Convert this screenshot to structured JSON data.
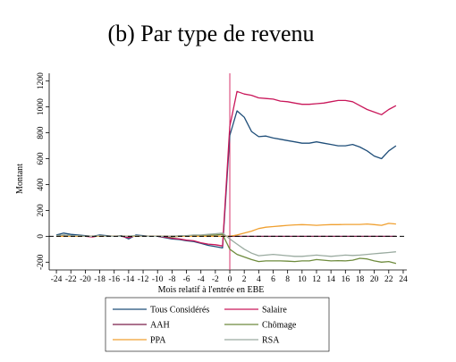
{
  "chart_data": {
    "type": "line",
    "title": "(b) Par type de revenu",
    "xlabel": "Mois relatif à l'entrée en EBE",
    "ylabel": "Montant",
    "xlim": [
      -25,
      24.5
    ],
    "ylim": [
      -260,
      1260
    ],
    "x_ticks": [
      -24,
      -22,
      -20,
      -18,
      -16,
      -14,
      -12,
      -10,
      -8,
      -6,
      -4,
      -2,
      0,
      2,
      4,
      6,
      8,
      10,
      12,
      14,
      16,
      18,
      20,
      22,
      24
    ],
    "y_ticks": [
      -200,
      0,
      200,
      400,
      600,
      800,
      1000,
      1200
    ],
    "vertical_line_x": 0,
    "zero_line": "dashed",
    "grid": false,
    "legend_position": "bottom",
    "x": [
      -24,
      -23,
      -22,
      -21,
      -20,
      -19,
      -18,
      -17,
      -16,
      -15,
      -14,
      -13,
      -12,
      -11,
      -10,
      -9,
      -8,
      -7,
      -6,
      -5,
      -4,
      -3,
      -2,
      -1,
      0,
      1,
      2,
      3,
      4,
      5,
      6,
      7,
      8,
      9,
      10,
      11,
      12,
      13,
      14,
      15,
      16,
      17,
      18,
      19,
      20,
      21,
      22,
      23
    ],
    "series": [
      {
        "name": "Tous Considérés",
        "color": "#1f4e79",
        "values": [
          10,
          25,
          15,
          10,
          5,
          0,
          10,
          5,
          0,
          5,
          -20,
          10,
          5,
          0,
          0,
          -10,
          -20,
          -25,
          -35,
          -40,
          -55,
          -70,
          -80,
          -90,
          780,
          970,
          920,
          810,
          770,
          775,
          760,
          750,
          740,
          730,
          720,
          720,
          730,
          720,
          710,
          700,
          700,
          710,
          690,
          660,
          620,
          600,
          660,
          700
        ]
      },
      {
        "name": "Salaire",
        "color": "#c9175a",
        "values": [
          0,
          5,
          5,
          0,
          0,
          -5,
          5,
          0,
          0,
          0,
          -10,
          5,
          0,
          0,
          0,
          -5,
          -15,
          -20,
          -30,
          -35,
          -50,
          -60,
          -65,
          -75,
          850,
          1120,
          1100,
          1090,
          1070,
          1065,
          1060,
          1045,
          1040,
          1030,
          1020,
          1020,
          1025,
          1030,
          1040,
          1050,
          1050,
          1040,
          1010,
          980,
          960,
          940,
          980,
          1010
        ]
      },
      {
        "name": "AAH",
        "color": "#7a1f4a",
        "values": [
          0,
          5,
          0,
          0,
          0,
          0,
          0,
          0,
          0,
          0,
          0,
          0,
          0,
          0,
          0,
          0,
          0,
          0,
          0,
          0,
          0,
          0,
          0,
          0,
          0,
          0,
          0,
          0,
          0,
          0,
          0,
          0,
          0,
          0,
          0,
          0,
          0,
          0,
          0,
          0,
          0,
          0,
          0,
          0,
          0,
          0,
          0,
          0
        ]
      },
      {
        "name": "Chômage",
        "color": "#6e8b3d",
        "values": [
          5,
          10,
          5,
          5,
          0,
          0,
          5,
          0,
          0,
          0,
          0,
          5,
          0,
          0,
          0,
          0,
          -5,
          0,
          0,
          5,
          5,
          10,
          10,
          15,
          -100,
          -140,
          -160,
          -180,
          -195,
          -190,
          -190,
          -190,
          -192,
          -195,
          -190,
          -190,
          -180,
          -185,
          -190,
          -188,
          -190,
          -185,
          -170,
          -175,
          -190,
          -200,
          -195,
          -210
        ]
      },
      {
        "name": "PPA",
        "color": "#f0a030",
        "values": [
          0,
          0,
          0,
          0,
          0,
          0,
          0,
          0,
          0,
          0,
          0,
          0,
          0,
          0,
          0,
          0,
          0,
          0,
          0,
          0,
          0,
          0,
          0,
          0,
          0,
          10,
          25,
          40,
          60,
          70,
          75,
          80,
          85,
          88,
          90,
          88,
          85,
          88,
          90,
          90,
          92,
          92,
          92,
          95,
          90,
          85,
          100,
          95
        ]
      },
      {
        "name": "RSA",
        "color": "#9aaba0",
        "values": [
          5,
          10,
          5,
          5,
          0,
          0,
          5,
          0,
          0,
          0,
          0,
          5,
          0,
          0,
          0,
          0,
          0,
          5,
          5,
          10,
          10,
          15,
          20,
          25,
          -20,
          -60,
          -100,
          -130,
          -150,
          -145,
          -140,
          -145,
          -150,
          -155,
          -155,
          -150,
          -145,
          -150,
          -155,
          -150,
          -145,
          -148,
          -145,
          -140,
          -135,
          -130,
          -125,
          -120
        ]
      }
    ]
  }
}
